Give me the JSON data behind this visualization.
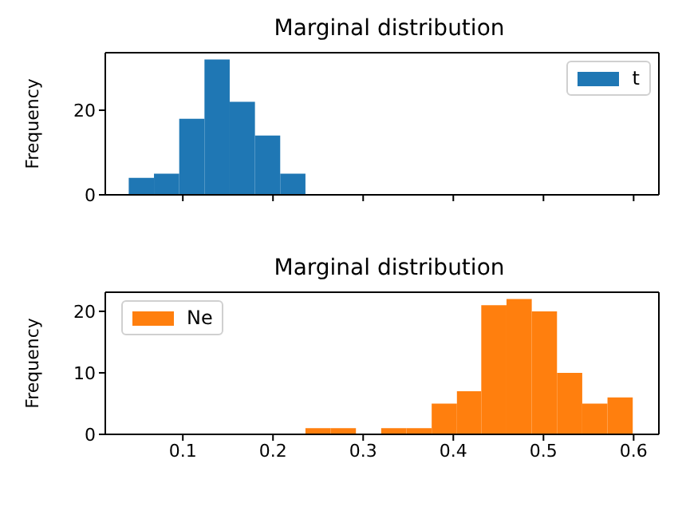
{
  "chart_data": [
    {
      "type": "histogram",
      "title": "Marginal distribution",
      "ylabel": "Frequency",
      "bins": [
        0.04,
        0.068,
        0.096,
        0.124,
        0.152,
        0.18,
        0.208,
        0.236
      ],
      "series": [
        {
          "name": "t",
          "color": "#1f77b4",
          "values": [
            4,
            5,
            18,
            32,
            22,
            14,
            5
          ]
        }
      ],
      "xlim": [
        0.014,
        0.628
      ],
      "xticks": [
        0.1,
        0.2,
        0.3,
        0.4,
        0.5,
        0.6
      ],
      "ylim": [
        0,
        33.6
      ],
      "yticks": [
        0,
        20
      ],
      "tick_labels": "y",
      "legend": "top right",
      "grid": false
    },
    {
      "type": "histogram",
      "title": "Marginal distribution",
      "ylabel": "Frequency",
      "bins": [
        0.236,
        0.264,
        0.292,
        0.32,
        0.348,
        0.376,
        0.404,
        0.431,
        0.459,
        0.487,
        0.515,
        0.543,
        0.571,
        0.599
      ],
      "series": [
        {
          "name": "Ne",
          "color": "#ff7f0e",
          "values": [
            1,
            1,
            0,
            1,
            1,
            5,
            7,
            21,
            22,
            20,
            10,
            5,
            6
          ]
        }
      ],
      "xlim": [
        0.014,
        0.628
      ],
      "xticks": [
        0.1,
        0.2,
        0.3,
        0.4,
        0.5,
        0.6
      ],
      "ylim": [
        0,
        23.1
      ],
      "yticks": [
        0,
        10,
        20
      ],
      "legend": "top left",
      "grid": false
    }
  ]
}
